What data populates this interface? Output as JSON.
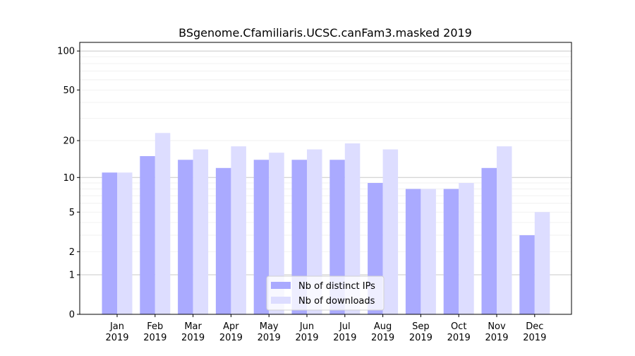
{
  "chart_data": {
    "type": "bar",
    "title": "BSgenome.Cfamiliaris.UCSC.canFam3.masked 2019",
    "xlabel": "",
    "ylabel": "",
    "y_scale": "log10(1+y)",
    "ylim": [
      0,
      110
    ],
    "yticks": [
      0,
      1,
      2,
      5,
      10,
      20,
      50,
      100
    ],
    "grid": true,
    "legend_position": "bottom-center",
    "categories": [
      "Jan\n2019",
      "Feb\n2019",
      "Mar\n2019",
      "Apr\n2019",
      "May\n2019",
      "Jun\n2019",
      "Jul\n2019",
      "Aug\n2019",
      "Sep\n2019",
      "Oct\n2019",
      "Nov\n2019",
      "Dec\n2019"
    ],
    "series": [
      {
        "name": "Nb of distinct IPs",
        "color": "#aaaaff",
        "values": [
          11,
          15,
          14,
          12,
          14,
          14,
          14,
          9,
          8,
          8,
          12,
          3
        ]
      },
      {
        "name": "Nb of downloads",
        "color": "#ddddff",
        "values": [
          11,
          23,
          17,
          18,
          16,
          17,
          19,
          17,
          8,
          9,
          18,
          5
        ]
      }
    ]
  }
}
